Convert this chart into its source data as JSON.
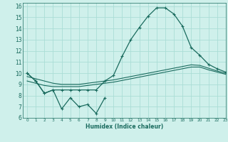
{
  "xlabel": "Humidex (Indice chaleur)",
  "background_color": "#cff0eb",
  "grid_color": "#aaddd6",
  "line_color": "#1a6b5e",
  "xlim": [
    -0.5,
    23
  ],
  "ylim": [
    6,
    16.3
  ],
  "xticks": [
    0,
    1,
    2,
    3,
    4,
    5,
    6,
    7,
    8,
    9,
    10,
    11,
    12,
    13,
    14,
    15,
    16,
    17,
    18,
    19,
    20,
    21,
    22,
    23
  ],
  "yticks": [
    6,
    7,
    8,
    9,
    10,
    11,
    12,
    13,
    14,
    15,
    16
  ],
  "line1_x": [
    0,
    1,
    2,
    3,
    4,
    5,
    6,
    7,
    8,
    9
  ],
  "line1_y": [
    10.0,
    9.3,
    8.2,
    8.5,
    6.8,
    7.8,
    7.0,
    7.2,
    6.4,
    7.8
  ],
  "line2_x": [
    0,
    1,
    2,
    3,
    4,
    5,
    6,
    7,
    8,
    9,
    10,
    11,
    12,
    13,
    14,
    15,
    16,
    17,
    18,
    19,
    20,
    21,
    22,
    23
  ],
  "line2_y": [
    10.0,
    9.3,
    8.2,
    8.5,
    8.5,
    8.5,
    8.5,
    8.5,
    8.5,
    9.3,
    9.8,
    11.5,
    13.0,
    14.1,
    15.1,
    15.85,
    15.85,
    15.3,
    14.2,
    12.3,
    11.6,
    10.8,
    10.4,
    10.1
  ],
  "line3_x": [
    0,
    1,
    2,
    3,
    4,
    5,
    6,
    7,
    8,
    9,
    10,
    11,
    12,
    13,
    14,
    15,
    16,
    17,
    18,
    19,
    20,
    21,
    22,
    23
  ],
  "line3_y": [
    9.3,
    9.1,
    8.9,
    8.8,
    8.8,
    8.8,
    8.8,
    8.9,
    9.0,
    9.1,
    9.2,
    9.35,
    9.5,
    9.65,
    9.8,
    9.95,
    10.1,
    10.25,
    10.4,
    10.55,
    10.55,
    10.3,
    10.1,
    9.9
  ],
  "line4_x": [
    0,
    1,
    2,
    3,
    4,
    5,
    6,
    7,
    8,
    9,
    10,
    11,
    12,
    13,
    14,
    15,
    16,
    17,
    18,
    19,
    20,
    21,
    22,
    23
  ],
  "line4_y": [
    9.7,
    9.5,
    9.3,
    9.1,
    9.0,
    9.0,
    9.0,
    9.1,
    9.2,
    9.3,
    9.4,
    9.55,
    9.7,
    9.85,
    10.0,
    10.15,
    10.3,
    10.45,
    10.6,
    10.75,
    10.7,
    10.45,
    10.2,
    10.0
  ]
}
